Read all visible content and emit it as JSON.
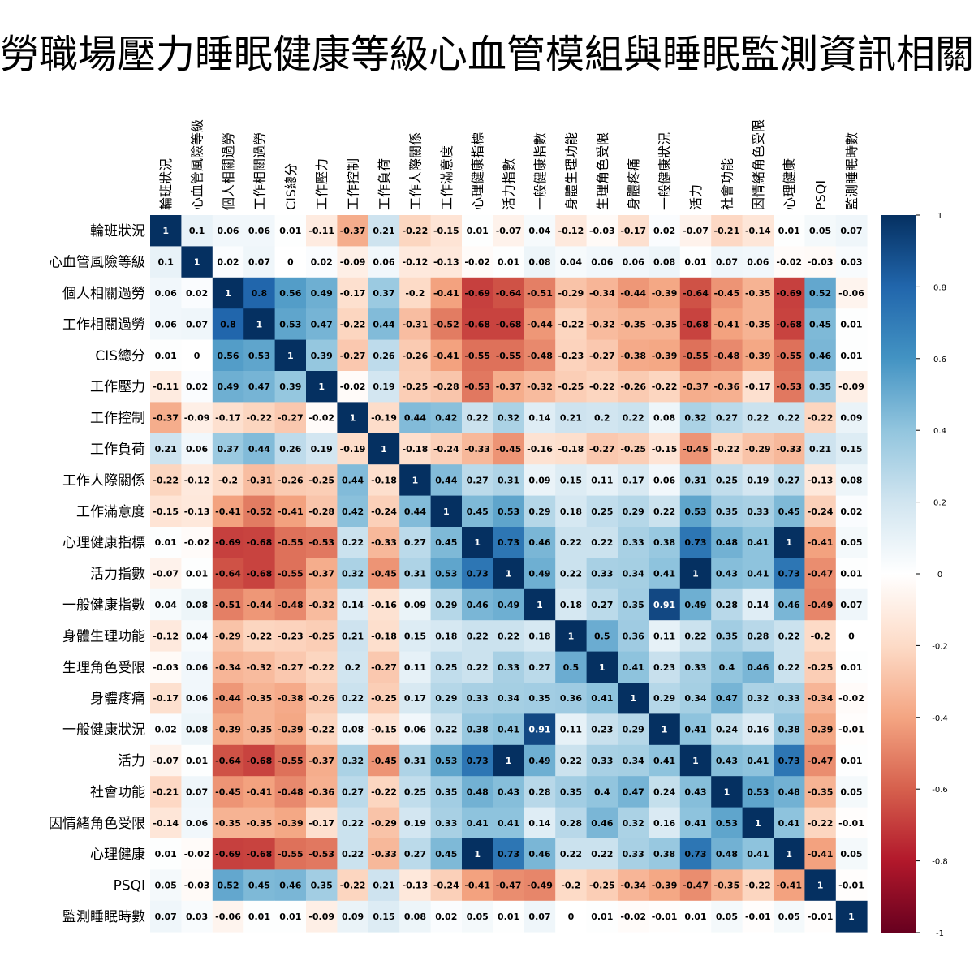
{
  "chart_data": {
    "type": "heatmap",
    "title": "勞職場壓力睡眠健康等級心血管模組與睡眠監測資訊相關",
    "labels": [
      "輪班狀況",
      "心血管風險等級",
      "個人相關過勞",
      "工作相關過勞",
      "CIS總分",
      "工作壓力",
      "工作控制",
      "工作負荷",
      "工作人際關係",
      "工作滿意度",
      "心理健康指標",
      "活力指數",
      "一般健康指數",
      "身體生理功能",
      "生理角色受限",
      "身體疼痛",
      "一般健康狀況",
      "活力",
      "社會功能",
      "因情緒角色受限",
      "心理健康",
      "PSQI",
      "監測睡眠時數"
    ],
    "matrix": [
      [
        1,
        0.1,
        0.06,
        0.06,
        0.01,
        -0.11,
        -0.37,
        0.21,
        -0.22,
        -0.15,
        0.01,
        -0.07,
        0.04,
        -0.12,
        -0.03,
        -0.17,
        0.02,
        -0.07,
        -0.21,
        -0.14,
        0.01,
        0.05,
        0.07
      ],
      [
        0.1,
        1,
        0.02,
        0.07,
        0,
        0.02,
        -0.09,
        0.06,
        -0.12,
        -0.13,
        -0.02,
        0.01,
        0.08,
        0.04,
        0.06,
        0.06,
        0.08,
        0.01,
        0.07,
        0.06,
        -0.02,
        -0.03,
        0.03
      ],
      [
        0.06,
        0.02,
        1,
        0.8,
        0.56,
        0.49,
        -0.17,
        0.37,
        -0.2,
        -0.41,
        -0.69,
        -0.64,
        -0.51,
        -0.29,
        -0.34,
        -0.44,
        -0.39,
        -0.64,
        -0.45,
        -0.35,
        -0.69,
        0.52,
        -0.06
      ],
      [
        0.06,
        0.07,
        0.8,
        1,
        0.53,
        0.47,
        -0.22,
        0.44,
        -0.31,
        -0.52,
        -0.68,
        -0.68,
        -0.44,
        -0.22,
        -0.32,
        -0.35,
        -0.35,
        -0.68,
        -0.41,
        -0.35,
        -0.68,
        0.45,
        0.01
      ],
      [
        0.01,
        0,
        0.56,
        0.53,
        1,
        0.39,
        -0.27,
        0.26,
        -0.26,
        -0.41,
        -0.55,
        -0.55,
        -0.48,
        -0.23,
        -0.27,
        -0.38,
        -0.39,
        -0.55,
        -0.48,
        -0.39,
        -0.55,
        0.46,
        0.01
      ],
      [
        -0.11,
        0.02,
        0.49,
        0.47,
        0.39,
        1,
        -0.02,
        0.19,
        -0.25,
        -0.28,
        -0.53,
        -0.37,
        -0.32,
        -0.25,
        -0.22,
        -0.26,
        -0.22,
        -0.37,
        -0.36,
        -0.17,
        -0.53,
        0.35,
        -0.09
      ],
      [
        -0.37,
        -0.09,
        -0.17,
        -0.22,
        -0.27,
        -0.02,
        1,
        -0.19,
        0.44,
        0.42,
        0.22,
        0.32,
        0.14,
        0.21,
        0.2,
        0.22,
        0.08,
        0.32,
        0.27,
        0.22,
        0.22,
        -0.22,
        0.09
      ],
      [
        0.21,
        0.06,
        0.37,
        0.44,
        0.26,
        0.19,
        -0.19,
        1,
        -0.18,
        -0.24,
        -0.33,
        -0.45,
        -0.16,
        -0.18,
        -0.27,
        -0.25,
        -0.15,
        -0.45,
        -0.22,
        -0.29,
        -0.33,
        0.21,
        0.15
      ],
      [
        -0.22,
        -0.12,
        -0.2,
        -0.31,
        -0.26,
        -0.25,
        0.44,
        -0.18,
        1,
        0.44,
        0.27,
        0.31,
        0.09,
        0.15,
        0.11,
        0.17,
        0.06,
        0.31,
        0.25,
        0.19,
        0.27,
        -0.13,
        0.08
      ],
      [
        -0.15,
        -0.13,
        -0.41,
        -0.52,
        -0.41,
        -0.28,
        0.42,
        -0.24,
        0.44,
        1,
        0.45,
        0.53,
        0.29,
        0.18,
        0.25,
        0.29,
        0.22,
        0.53,
        0.35,
        0.33,
        0.45,
        -0.24,
        0.02
      ],
      [
        0.01,
        -0.02,
        -0.69,
        -0.68,
        -0.55,
        -0.53,
        0.22,
        -0.33,
        0.27,
        0.45,
        1,
        0.73,
        0.46,
        0.22,
        0.22,
        0.33,
        0.38,
        0.73,
        0.48,
        0.41,
        1,
        -0.41,
        0.05
      ],
      [
        -0.07,
        0.01,
        -0.64,
        -0.68,
        -0.55,
        -0.37,
        0.32,
        -0.45,
        0.31,
        0.53,
        0.73,
        1,
        0.49,
        0.22,
        0.33,
        0.34,
        0.41,
        1,
        0.43,
        0.41,
        0.73,
        -0.47,
        0.01
      ],
      [
        0.04,
        0.08,
        -0.51,
        -0.44,
        -0.48,
        -0.32,
        0.14,
        -0.16,
        0.09,
        0.29,
        0.46,
        0.49,
        1,
        0.18,
        0.27,
        0.35,
        0.91,
        0.49,
        0.28,
        0.14,
        0.46,
        -0.49,
        0.07
      ],
      [
        -0.12,
        0.04,
        -0.29,
        -0.22,
        -0.23,
        -0.25,
        0.21,
        -0.18,
        0.15,
        0.18,
        0.22,
        0.22,
        0.18,
        1,
        0.5,
        0.36,
        0.11,
        0.22,
        0.35,
        0.28,
        0.22,
        -0.2,
        0
      ],
      [
        -0.03,
        0.06,
        -0.34,
        -0.32,
        -0.27,
        -0.22,
        0.2,
        -0.27,
        0.11,
        0.25,
        0.22,
        0.33,
        0.27,
        0.5,
        1,
        0.41,
        0.23,
        0.33,
        0.4,
        0.46,
        0.22,
        -0.25,
        0.01
      ],
      [
        -0.17,
        0.06,
        -0.44,
        -0.35,
        -0.38,
        -0.26,
        0.22,
        -0.25,
        0.17,
        0.29,
        0.33,
        0.34,
        0.35,
        0.36,
        0.41,
        1,
        0.29,
        0.34,
        0.47,
        0.32,
        0.33,
        -0.34,
        -0.02
      ],
      [
        0.02,
        0.08,
        -0.39,
        -0.35,
        -0.39,
        -0.22,
        0.08,
        -0.15,
        0.06,
        0.22,
        0.38,
        0.41,
        0.91,
        0.11,
        0.23,
        0.29,
        1,
        0.41,
        0.24,
        0.16,
        0.38,
        -0.39,
        -0.01
      ],
      [
        -0.07,
        0.01,
        -0.64,
        -0.68,
        -0.55,
        -0.37,
        0.32,
        -0.45,
        0.31,
        0.53,
        0.73,
        1,
        0.49,
        0.22,
        0.33,
        0.34,
        0.41,
        1,
        0.43,
        0.41,
        0.73,
        -0.47,
        0.01
      ],
      [
        -0.21,
        0.07,
        -0.45,
        -0.41,
        -0.48,
        -0.36,
        0.27,
        -0.22,
        0.25,
        0.35,
        0.48,
        0.43,
        0.28,
        0.35,
        0.4,
        0.47,
        0.24,
        0.43,
        1,
        0.53,
        0.48,
        -0.35,
        0.05
      ],
      [
        -0.14,
        0.06,
        -0.35,
        -0.35,
        -0.39,
        -0.17,
        0.22,
        -0.29,
        0.19,
        0.33,
        0.41,
        0.41,
        0.14,
        0.28,
        0.46,
        0.32,
        0.16,
        0.41,
        0.53,
        1,
        0.41,
        -0.22,
        -0.01
      ],
      [
        0.01,
        -0.02,
        -0.69,
        -0.68,
        -0.55,
        -0.53,
        0.22,
        -0.33,
        0.27,
        0.45,
        1,
        0.73,
        0.46,
        0.22,
        0.22,
        0.33,
        0.38,
        0.73,
        0.48,
        0.41,
        1,
        -0.41,
        0.05
      ],
      [
        0.05,
        -0.03,
        0.52,
        0.45,
        0.46,
        0.35,
        -0.22,
        0.21,
        -0.13,
        -0.24,
        -0.41,
        -0.47,
        -0.49,
        -0.2,
        -0.25,
        -0.34,
        -0.39,
        -0.47,
        -0.35,
        -0.22,
        -0.41,
        1,
        -0.01
      ],
      [
        0.07,
        0.03,
        -0.06,
        0.01,
        0.01,
        -0.09,
        0.09,
        0.15,
        0.08,
        0.02,
        0.05,
        0.01,
        0.07,
        0,
        0.01,
        -0.02,
        -0.01,
        0.01,
        0.05,
        -0.01,
        0.05,
        -0.01,
        1
      ]
    ],
    "value_range": [
      -1,
      1
    ],
    "colorbar": {
      "ticks": [
        1,
        0.8,
        0.6,
        0.4,
        0.2,
        0,
        -0.2,
        -0.4,
        -0.6,
        -0.8,
        -1
      ],
      "tick_labels": [
        "1",
        "0.8",
        "0.6",
        "0.4",
        "0.2",
        "0",
        "-0.2",
        "-0.4",
        "-0.6",
        "-0.8",
        "-1"
      ],
      "low_color": "#67001F",
      "mid_color": "#FFFFFF",
      "high_color": "#053061"
    },
    "legend_position": "right"
  }
}
